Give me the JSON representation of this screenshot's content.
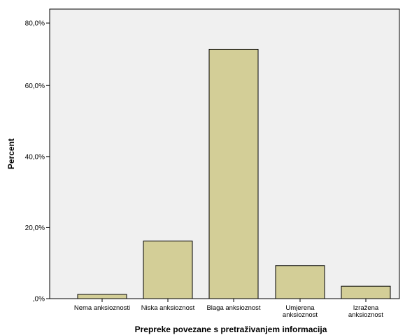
{
  "chart_data": {
    "type": "bar",
    "title": "",
    "xlabel": "Prepreke povezane s pretraživanjem informacija",
    "ylabel": "Percent",
    "categories": [
      [
        "Nema anksioznosti"
      ],
      [
        "Niska anksioznost"
      ],
      [
        "Blaga anksioznost"
      ],
      [
        "Umjerena",
        "anksioznost"
      ],
      [
        "Izražena",
        "anksioznost"
      ]
    ],
    "values": [
      1.2,
      16.2,
      70.2,
      9.3,
      3.5
    ],
    "ylim": [
      0,
      80
    ],
    "yticks": [
      0,
      20,
      40,
      60,
      80
    ],
    "ytick_labels": [
      ",0%",
      "20,0%",
      "40,0%",
      "60,0%",
      "80,0%"
    ],
    "grid": false,
    "legend": "none",
    "colors": {
      "plot_background": "#F0F0F0",
      "bar_fill": "#D3CE97",
      "bar_stroke": "#000000",
      "axis": "#000000"
    }
  }
}
